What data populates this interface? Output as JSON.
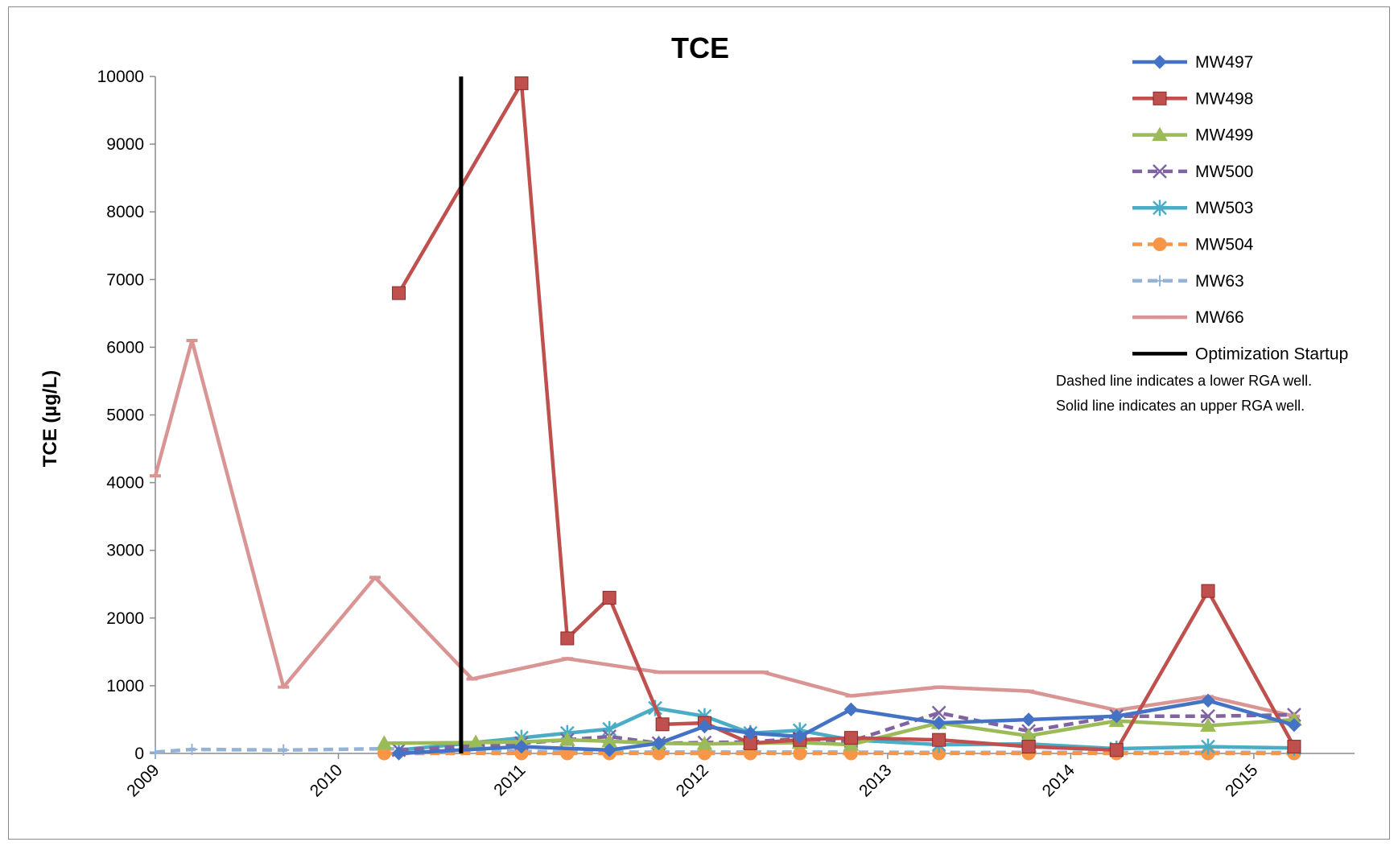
{
  "chart_data": {
    "type": "line",
    "title": "TCE",
    "xlabel": "",
    "ylabel": "TCE (µg/L)",
    "x_ticks": [
      "2009",
      "2010",
      "2011",
      "2012",
      "2013",
      "2014",
      "2015"
    ],
    "xlim": [
      2009.0,
      2015.55
    ],
    "ylim": [
      0,
      10000
    ],
    "y_ticks": [
      "0",
      "1000",
      "2000",
      "3000",
      "4000",
      "5000",
      "6000",
      "7000",
      "8000",
      "9000",
      "10000"
    ],
    "grid": false,
    "legend_position": "top-right",
    "series": [
      {
        "name": "MW497",
        "color": "#4472c4",
        "dash": false,
        "marker": "diamond",
        "x": [
          2010.33,
          2011.0,
          2011.48,
          2011.75,
          2012.0,
          2012.25,
          2012.52,
          2012.8,
          2013.28,
          2013.77,
          2014.25,
          2014.75,
          2015.22
        ],
        "y": [
          0,
          100,
          50,
          150,
          400,
          300,
          250,
          650,
          450,
          500,
          550,
          780,
          420
        ]
      },
      {
        "name": "MW498",
        "color": "#c0504d",
        "dash": false,
        "marker": "square",
        "x": [
          2010.33,
          2011.0,
          2011.25,
          2011.48,
          2011.77,
          2012.0,
          2012.25,
          2012.52,
          2012.8,
          2013.28,
          2013.77,
          2014.25,
          2014.75,
          2015.22
        ],
        "y": [
          6800,
          9900,
          1700,
          2300,
          430,
          450,
          150,
          200,
          230,
          200,
          100,
          50,
          2400,
          100
        ]
      },
      {
        "name": "MW499",
        "color": "#9bbb59",
        "dash": false,
        "marker": "triangle",
        "x": [
          2010.25,
          2010.75,
          2011.0,
          2011.25,
          2011.48,
          2011.75,
          2012.0,
          2012.25,
          2012.52,
          2012.8,
          2013.28,
          2013.77,
          2014.25,
          2014.75,
          2015.22
        ],
        "y": [
          150,
          160,
          170,
          200,
          180,
          150,
          140,
          150,
          160,
          130,
          450,
          260,
          480,
          410,
          500
        ]
      },
      {
        "name": "MW500",
        "color": "#8064a2",
        "dash": true,
        "marker": "x",
        "x": [
          2010.33,
          2011.0,
          2011.25,
          2011.48,
          2011.75,
          2012.0,
          2012.25,
          2012.52,
          2012.8,
          2013.28,
          2013.77,
          2014.25,
          2014.75,
          2015.22
        ],
        "y": [
          50,
          150,
          200,
          250,
          150,
          160,
          170,
          220,
          180,
          600,
          330,
          550,
          550,
          570
        ]
      },
      {
        "name": "MW503",
        "color": "#4bacc6",
        "dash": false,
        "marker": "asterisk",
        "x": [
          2010.33,
          2011.0,
          2011.25,
          2011.48,
          2011.73,
          2012.0,
          2012.25,
          2012.52,
          2012.8,
          2013.28,
          2013.77,
          2014.25,
          2014.75,
          2015.22
        ],
        "y": [
          50,
          230,
          300,
          360,
          670,
          550,
          300,
          340,
          200,
          130,
          140,
          70,
          100,
          80
        ]
      },
      {
        "name": "MW504",
        "color": "#f79646",
        "dash": true,
        "marker": "circle",
        "x": [
          2010.25,
          2011.0,
          2011.25,
          2011.48,
          2011.75,
          2012.0,
          2012.25,
          2012.52,
          2012.8,
          2013.28,
          2013.77,
          2014.25,
          2014.75,
          2015.22
        ],
        "y": [
          0,
          0,
          0,
          0,
          0,
          0,
          0,
          0,
          0,
          0,
          0,
          0,
          0,
          0
        ]
      },
      {
        "name": "MW63",
        "color": "#95b3d7",
        "dash": true,
        "marker": "plus",
        "x": [
          2009.0,
          2009.2,
          2009.7,
          2010.25,
          2011.0,
          2011.48,
          2012.0,
          2012.52,
          2013.28,
          2013.77,
          2014.25,
          2014.75,
          2015.22
        ],
        "y": [
          20,
          60,
          50,
          70,
          30,
          20,
          20,
          20,
          15,
          15,
          15,
          15,
          15
        ]
      },
      {
        "name": "MW66",
        "color": "#d99594",
        "dash": false,
        "marker": "dash",
        "x": [
          2009.0,
          2009.2,
          2009.7,
          2010.2,
          2010.73,
          2011.25,
          2011.75,
          2012.32,
          2012.8,
          2013.28,
          2013.77,
          2014.25,
          2014.75,
          2015.22
        ],
        "y": [
          4100,
          6100,
          980,
          2600,
          1100,
          1400,
          1200,
          1200,
          850,
          980,
          920,
          640,
          840,
          550
        ]
      }
    ],
    "annotations": [
      {
        "type": "vertical-line",
        "name": "Optimization Startup",
        "color": "#000000",
        "x": 2010.67
      }
    ],
    "notes": [
      "Dashed line indicates a lower RGA well.",
      "Solid line indicates an upper RGA well."
    ]
  }
}
